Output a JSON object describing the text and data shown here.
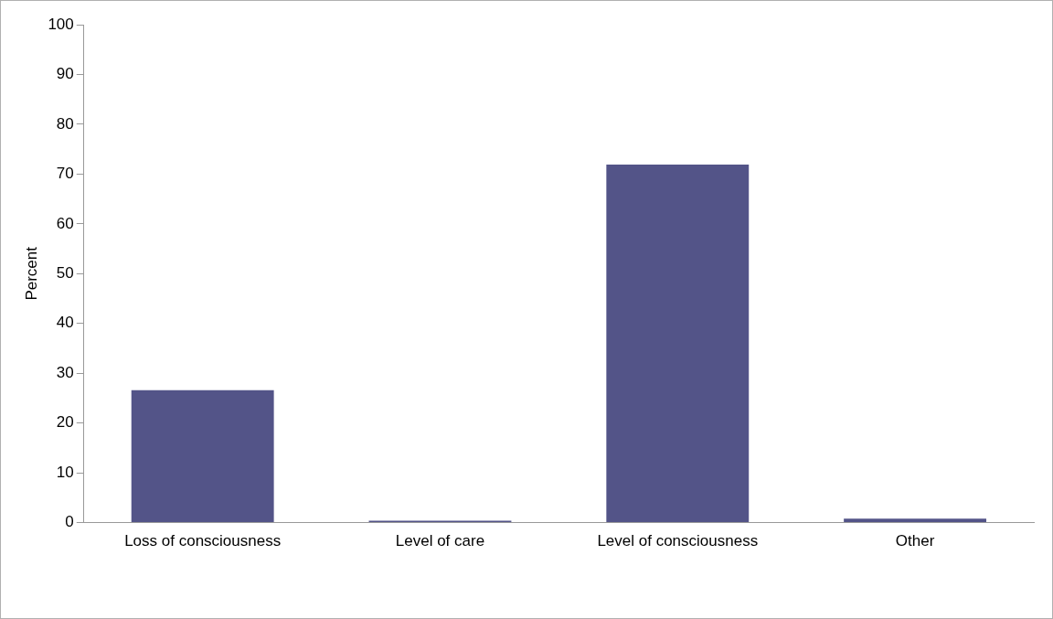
{
  "chart_data": {
    "type": "bar",
    "ylabel": "Percent",
    "categories": [
      "Loss of consciousness",
      "Level of care",
      "Level of consciousness",
      "Other"
    ],
    "values": [
      26.6,
      0.4,
      71.9,
      0.8
    ],
    "color": "#535488",
    "ylim": [
      0,
      100
    ],
    "yticks": [
      0,
      10,
      20,
      30,
      40,
      50,
      60,
      70,
      80,
      90,
      100
    ],
    "grid": false,
    "legend": false
  }
}
